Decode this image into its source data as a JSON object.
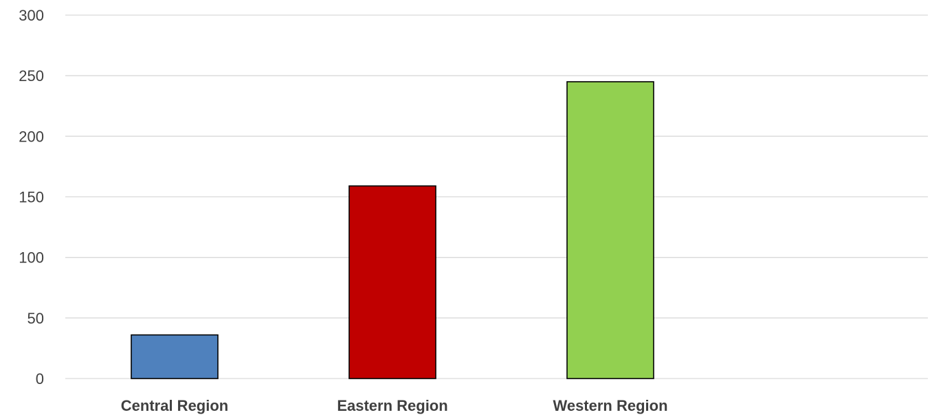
{
  "chart_data": {
    "type": "bar",
    "title": "",
    "xlabel": "",
    "ylabel": "",
    "categories": [
      "Central Region",
      "Eastern Region",
      "Western Region"
    ],
    "values": [
      36,
      159,
      245
    ],
    "colors": [
      "#4f81bd",
      "#c00000",
      "#92d050"
    ],
    "ylim": [
      0,
      300
    ],
    "yticks": [
      "0",
      "50",
      "100",
      "150",
      "200",
      "250",
      "300"
    ],
    "grid": true,
    "legend": "none"
  }
}
